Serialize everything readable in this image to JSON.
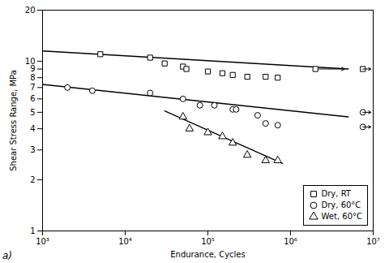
{
  "chart_data": {
    "type": "scatter",
    "xlabel": "Endurance, Cycles",
    "ylabel": "Shear Stress Range, MPa",
    "log": true,
    "grid": false,
    "legend": "lower right",
    "xlim": [
      1000,
      10000000
    ],
    "ylim": [
      1,
      20
    ],
    "xticks": [
      {
        "value": 1000,
        "label": "10³"
      },
      {
        "value": 10000,
        "label": "10⁴"
      },
      {
        "value": 100000,
        "label": "10⁵"
      },
      {
        "value": 1000000,
        "label": "10⁶"
      },
      {
        "value": 10000000,
        "label": "10⁷"
      }
    ],
    "yticks": [
      1,
      2,
      3,
      4,
      5,
      6,
      7,
      8,
      9,
      10,
      20
    ],
    "annotation": "a)",
    "series": [
      {
        "name": "Dry, RT",
        "marker": "square",
        "color": "#000000",
        "x": [
          5000,
          20000,
          30000,
          50000,
          55000,
          100000,
          150000,
          200000,
          300000,
          500000,
          700000,
          2000000
        ],
        "values": [
          11.0,
          10.5,
          9.7,
          9.3,
          9.0,
          8.7,
          8.5,
          8.3,
          8.1,
          8.1,
          8.0,
          9.0
        ],
        "runout_x": [
          7500000
        ],
        "runout_values": [
          9.0
        ],
        "fit_x": [
          1000,
          5000000
        ],
        "fit_values": [
          11.5,
          9.0
        ]
      },
      {
        "name": "Dry, 60°C",
        "marker": "circle",
        "color": "#000000",
        "x": [
          2000,
          4000,
          20000,
          50000,
          80000,
          120000,
          200000,
          220000,
          400000,
          500000,
          700000
        ],
        "values": [
          7.0,
          6.7,
          6.5,
          6.0,
          5.5,
          5.5,
          5.2,
          5.2,
          4.8,
          4.3,
          4.2
        ],
        "runout_x": [
          7500000,
          7500000
        ],
        "runout_values": [
          5.0,
          4.1
        ],
        "fit_x": [
          1000,
          5000000
        ],
        "fit_values": [
          7.3,
          4.7
        ]
      },
      {
        "name": "Wet, 60°C",
        "marker": "triangle",
        "color": "#000000",
        "x": [
          50000,
          60000,
          100000,
          150000,
          200000,
          300000,
          500000,
          700000
        ],
        "values": [
          4.7,
          4.0,
          3.8,
          3.6,
          3.3,
          2.8,
          2.6,
          2.6
        ],
        "runout_x": [],
        "runout_values": [],
        "fit_x": [
          30000,
          800000
        ],
        "fit_values": [
          5.1,
          2.5
        ]
      }
    ],
    "arrows": [
      {
        "x1": 2200000,
        "y1": 9.0,
        "x2": 4500000,
        "y2": 9.0
      },
      {
        "x1": 7500000,
        "y1": 9.0,
        "x2": 9375000,
        "y2": 9.0
      },
      {
        "x1": 7500000,
        "y1": 5.0,
        "x2": 9375000,
        "y2": 5.0
      },
      {
        "x1": 7500000,
        "y1": 4.1,
        "x2": 9375000,
        "y2": 4.1
      }
    ]
  }
}
